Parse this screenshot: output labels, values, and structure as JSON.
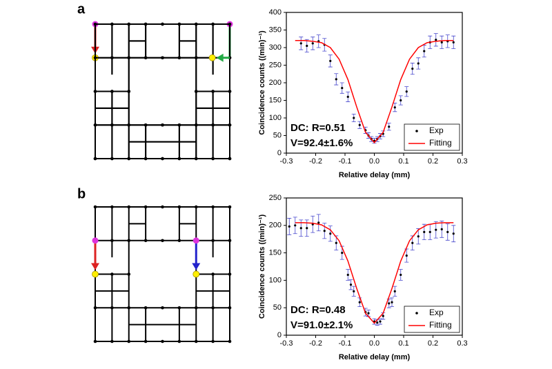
{
  "panels": [
    "a",
    "b"
  ],
  "chart_data": [
    {
      "type": "scatter",
      "xlabel": "Relative delay (mm)",
      "ylabel": "Coincidence counts ((min)⁻¹)",
      "annotations": [
        "DC: R=0.51",
        "V=92.4±1.6%"
      ],
      "xlim": [
        -0.3,
        0.3
      ],
      "xticks": [
        -0.3,
        -0.2,
        -0.1,
        {
          "value": 0,
          "label": "0.0"
        },
        0.1,
        0.2,
        0.3
      ],
      "ylim": [
        0,
        400
      ],
      "yticks": [
        0,
        50,
        100,
        150,
        200,
        250,
        300,
        350,
        400
      ],
      "legend": "lower right",
      "series": [
        {
          "name": "Exp",
          "mode": "markers",
          "color": "#000000",
          "error_color": "#4444cc",
          "x": [
            -0.25,
            -0.23,
            -0.21,
            -0.19,
            -0.17,
            -0.15,
            -0.13,
            -0.11,
            -0.09,
            -0.07,
            -0.05,
            -0.03,
            -0.02,
            -0.01,
            0.0,
            0.01,
            0.02,
            0.03,
            0.05,
            0.07,
            0.09,
            0.11,
            0.13,
            0.15,
            0.17,
            0.19,
            0.21,
            0.23,
            0.25,
            0.27
          ],
          "values": [
            312,
            305,
            312,
            318,
            308,
            262,
            210,
            185,
            160,
            100,
            80,
            65,
            50,
            40,
            35,
            40,
            48,
            55,
            75,
            130,
            150,
            175,
            240,
            255,
            290,
            315,
            322,
            315,
            318,
            315
          ],
          "errors": [
            18,
            18,
            18,
            18,
            18,
            17,
            16,
            15,
            14,
            11,
            10,
            9,
            8,
            7,
            7,
            7,
            8,
            8,
            10,
            12,
            13,
            14,
            16,
            16,
            17,
            18,
            18,
            18,
            18,
            18
          ]
        },
        {
          "name": "Fitting",
          "mode": "line",
          "color": "#ff0000",
          "x": [
            -0.27,
            -0.24,
            -0.21,
            -0.18,
            -0.15,
            -0.12,
            -0.09,
            -0.06,
            -0.03,
            0.0,
            0.03,
            0.06,
            0.09,
            0.12,
            0.15,
            0.18,
            0.21,
            0.24,
            0.27
          ],
          "values": [
            320,
            320,
            318,
            314,
            300,
            267,
            209,
            131,
            59,
            30,
            59,
            131,
            209,
            267,
            300,
            314,
            318,
            320,
            320
          ]
        }
      ]
    },
    {
      "type": "scatter",
      "xlabel": "Relative delay (mm)",
      "ylabel": "Coincidence counts ((min)⁻¹)",
      "annotations": [
        "DC: R=0.48",
        "V=91.0±2.1%"
      ],
      "xlim": [
        -0.3,
        0.3
      ],
      "xticks": [
        -0.3,
        -0.2,
        -0.1,
        {
          "value": 0,
          "label": "0.0"
        },
        0.1,
        0.2,
        0.3
      ],
      "ylim": [
        0,
        250
      ],
      "yticks": [
        0,
        50,
        100,
        150,
        200,
        250
      ],
      "legend": "lower right",
      "series": [
        {
          "name": "Exp",
          "mode": "markers",
          "color": "#000000",
          "error_color": "#4444cc",
          "x": [
            -0.29,
            -0.27,
            -0.25,
            -0.23,
            -0.21,
            -0.19,
            -0.17,
            -0.15,
            -0.13,
            -0.11,
            -0.09,
            -0.08,
            -0.07,
            -0.05,
            -0.03,
            -0.02,
            0.0,
            0.01,
            0.02,
            0.03,
            0.05,
            0.06,
            0.07,
            0.09,
            0.11,
            0.13,
            0.15,
            0.17,
            0.19,
            0.21,
            0.23,
            0.25,
            0.27
          ],
          "values": [
            198,
            200,
            195,
            195,
            202,
            205,
            190,
            185,
            168,
            150,
            110,
            92,
            80,
            60,
            42,
            40,
            25,
            23,
            25,
            35,
            58,
            60,
            80,
            110,
            145,
            168,
            180,
            188,
            188,
            192,
            193,
            188,
            185
          ],
          "errors": [
            15,
            15,
            15,
            15,
            15,
            15,
            14,
            14,
            13,
            12,
            10,
            9,
            9,
            8,
            7,
            6,
            5,
            5,
            5,
            6,
            8,
            8,
            9,
            10,
            12,
            13,
            14,
            14,
            14,
            15,
            15,
            15,
            15
          ]
        },
        {
          "name": "Fitting",
          "mode": "line",
          "color": "#ff0000",
          "x": [
            -0.27,
            -0.24,
            -0.21,
            -0.18,
            -0.15,
            -0.12,
            -0.09,
            -0.06,
            -0.03,
            0.0,
            0.03,
            0.06,
            0.09,
            0.12,
            0.15,
            0.18,
            0.21,
            0.24,
            0.27
          ],
          "values": [
            205,
            205,
            204,
            201,
            192,
            172,
            135,
            85,
            40,
            22,
            40,
            85,
            135,
            172,
            192,
            201,
            204,
            205,
            205
          ]
        }
      ]
    }
  ]
}
